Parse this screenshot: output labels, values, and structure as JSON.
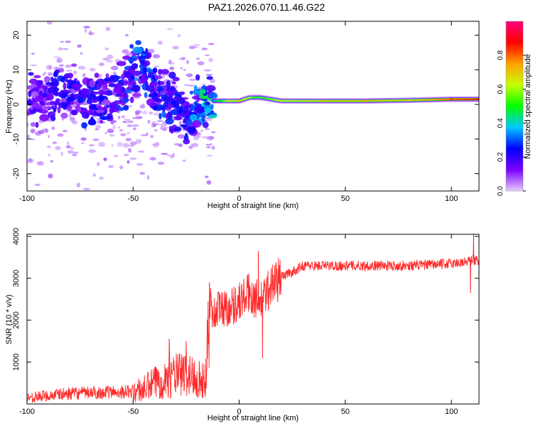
{
  "figure_title": "PAZ1.2026.070.11.46.G22",
  "chart_data": [
    {
      "type": "heatmap",
      "title": "PAZ1.2026.070.11.46.G22",
      "xlabel": "Height of straight line (km)",
      "ylabel": "Frequency (Hz)",
      "xlim": [
        -100,
        113
      ],
      "ylim": [
        -25,
        24
      ],
      "xticks": [
        -100,
        -50,
        0,
        50,
        100
      ],
      "yticks": [
        -20,
        -10,
        0,
        10,
        20
      ],
      "colorbar": {
        "label": "Normalized spectral amplitude",
        "range": [
          0.0,
          1.0
        ],
        "ticks": [
          0.0,
          0.2,
          0.4,
          0.6,
          0.8
        ],
        "colormap": [
          "#e6ccff",
          "#7a00ff",
          "#0000ff",
          "#00c8ff",
          "#00ff00",
          "#c8ff00",
          "#ffa000",
          "#ff0000",
          "#ff007a"
        ]
      },
      "ridge": {
        "description": "dominant frequency track",
        "x": [
          -100,
          -80,
          -60,
          -47,
          -40,
          -30,
          -25,
          -20,
          -10,
          -5,
          0,
          5,
          10,
          20,
          40,
          60,
          80,
          100,
          113
        ],
        "freq_hz": [
          2,
          3,
          1,
          12,
          5,
          -1,
          -5,
          1,
          1,
          1,
          1,
          2,
          2,
          1,
          1,
          1,
          1.2,
          1.5,
          1.5
        ],
        "amplitude": [
          0.15,
          0.2,
          0.2,
          0.25,
          0.25,
          0.2,
          0.2,
          0.3,
          0.4,
          0.55,
          0.6,
          0.5,
          0.45,
          0.55,
          0.6,
          0.62,
          0.58,
          0.7,
          0.75
        ]
      }
    },
    {
      "type": "line",
      "title": "",
      "xlabel": "Height of straight line (km)",
      "ylabel": "SNR (10 * v/v)",
      "xlim": [
        -100,
        113
      ],
      "ylim": [
        0,
        4050
      ],
      "xticks": [
        -100,
        -50,
        0,
        50,
        100
      ],
      "yticks": [
        1000,
        2000,
        3000,
        4000
      ],
      "series": [
        {
          "name": "SNR",
          "color": "#ff2a2a",
          "trend_x": [
            -100,
            -80,
            -60,
            -50,
            -45,
            -40,
            -30,
            -25,
            -20,
            -16,
            -14,
            -12,
            -10,
            -5,
            0,
            5,
            10,
            15,
            20,
            25,
            30,
            40,
            60,
            80,
            100,
            108,
            110,
            113
          ],
          "trend_y": [
            150,
            250,
            280,
            300,
            350,
            500,
            700,
            700,
            650,
            500,
            2500,
            2100,
            2300,
            2300,
            2450,
            2650,
            2400,
            2850,
            3050,
            3150,
            3300,
            3300,
            3300,
            3300,
            3350,
            3400,
            3450,
            3400
          ],
          "spikes": [
            {
              "x": -33,
              "y": 1550
            },
            {
              "x": -25,
              "y": 1500
            },
            {
              "x": -14,
              "y": 2900
            },
            {
              "x": 9,
              "y": 3650
            },
            {
              "x": 11,
              "y": 1100
            },
            {
              "x": 109,
              "y": 2650
            },
            {
              "x": 110.5,
              "y": 4050
            }
          ]
        }
      ]
    }
  ]
}
